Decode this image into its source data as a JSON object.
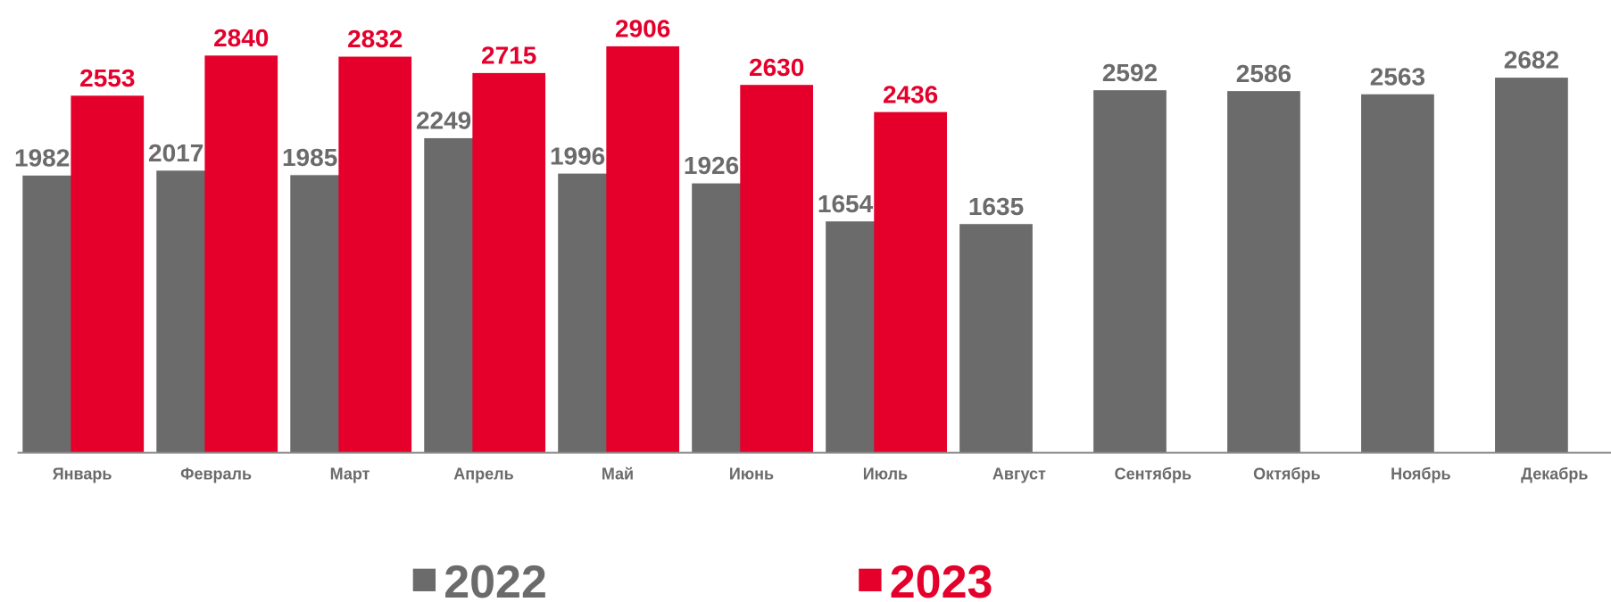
{
  "chart_data": {
    "type": "bar",
    "categories": [
      "Январь",
      "Февраль",
      "Март",
      "Апрель",
      "Май",
      "Июнь",
      "Июль",
      "Август",
      "Сентябрь",
      "Октябрь",
      "Ноябрь",
      "Декабрь"
    ],
    "series": [
      {
        "name": "2022",
        "color": "#6b6b6b",
        "values": [
          1982,
          2017,
          1985,
          2249,
          1996,
          1926,
          1654,
          1635,
          2592,
          2586,
          2563,
          2682
        ]
      },
      {
        "name": "2023",
        "color": "#e4002b",
        "values": [
          2553,
          2840,
          2832,
          2715,
          2906,
          2630,
          2436,
          null,
          null,
          null,
          null,
          null
        ]
      }
    ],
    "ylim": [
      0,
      3000
    ],
    "grid": false,
    "legend": "bottom"
  }
}
